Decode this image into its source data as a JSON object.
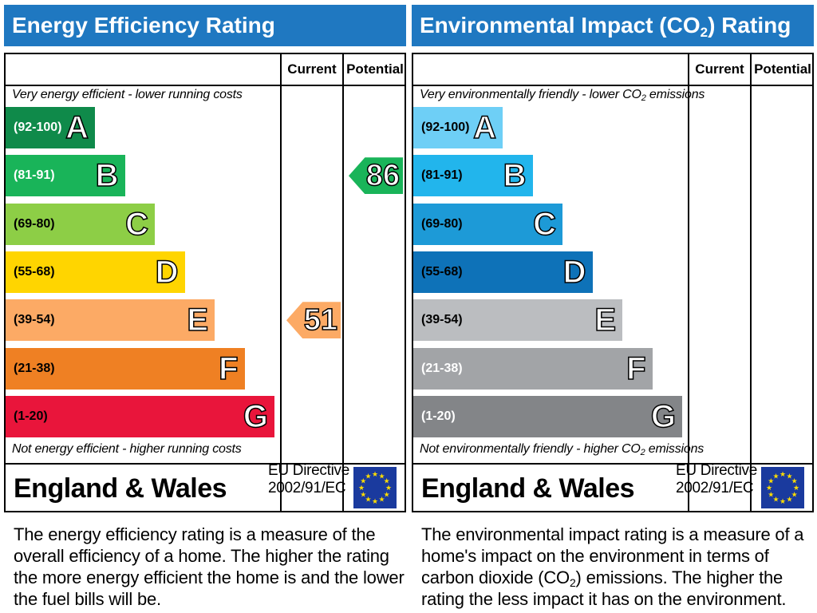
{
  "chart_data": [
    {
      "type": "bar",
      "title": "Energy Efficiency Rating",
      "columns": [
        "Current",
        "Potential"
      ],
      "top_note": "Very energy efficient - lower running costs",
      "bottom_note": "Not energy efficient - higher running costs",
      "bands": [
        {
          "range": "(92-100)",
          "letter": "A",
          "color": "#0f8a4a",
          "range_color": "#ffffff"
        },
        {
          "range": "(81-91)",
          "letter": "B",
          "color": "#19b459",
          "range_color": "#ffffff"
        },
        {
          "range": "(69-80)",
          "letter": "C",
          "color": "#8dce46",
          "range_color": "#000000"
        },
        {
          "range": "(55-68)",
          "letter": "D",
          "color": "#ffd500",
          "range_color": "#000000"
        },
        {
          "range": "(39-54)",
          "letter": "E",
          "color": "#fcaa65",
          "range_color": "#000000"
        },
        {
          "range": "(21-38)",
          "letter": "F",
          "color": "#ef8023",
          "range_color": "#000000"
        },
        {
          "range": "(1-20)",
          "letter": "G",
          "color": "#e9153b",
          "range_color": "#000000"
        }
      ],
      "ratings": [
        {
          "column": "Current",
          "value": 51,
          "band": "E",
          "color": "#fcaa65"
        },
        {
          "column": "Potential",
          "value": 86,
          "band": "B",
          "color": "#19b459"
        }
      ],
      "region": "England & Wales",
      "directive_line1": "EU Directive",
      "directive_line2": "2002/91/EC",
      "description": "The energy efficiency rating is a measure of the overall efficiency of a home. The higher the rating the more energy efficient the home is and the lower the fuel bills will be."
    },
    {
      "type": "bar",
      "title_main": "Environmental Impact (CO",
      "title_sub": "2",
      "title_end": ") Rating",
      "columns": [
        "Current",
        "Potential"
      ],
      "top_note_main": "Very environmentally friendly - lower CO",
      "top_note_sub": "2",
      "top_note_end": " emissions",
      "bottom_note_main": "Not environmentally friendly - higher CO",
      "bottom_note_sub": "2",
      "bottom_note_end": " emissions",
      "bands": [
        {
          "range": "(92-100)",
          "letter": "A",
          "color": "#6ecff6",
          "range_color": "#000000"
        },
        {
          "range": "(81-91)",
          "letter": "B",
          "color": "#22b5ec",
          "range_color": "#000000"
        },
        {
          "range": "(69-80)",
          "letter": "C",
          "color": "#1d9ad7",
          "range_color": "#000000"
        },
        {
          "range": "(55-68)",
          "letter": "D",
          "color": "#0e72b8",
          "range_color": "#000000"
        },
        {
          "range": "(39-54)",
          "letter": "E",
          "color": "#bbbdc0",
          "range_color": "#000000"
        },
        {
          "range": "(21-38)",
          "letter": "F",
          "color": "#a2a4a7",
          "range_color": "#ffffff"
        },
        {
          "range": "(1-20)",
          "letter": "G",
          "color": "#838588",
          "range_color": "#ffffff"
        }
      ],
      "ratings": [],
      "region": "England & Wales",
      "directive_line1": "EU Directive",
      "directive_line2": "2002/91/EC",
      "description_part1": "The environmental impact rating is a measure of a home's impact on the environment in terms of carbon dioxide (CO",
      "description_sub": "2",
      "description_part2": ") emissions. The higher the rating the less impact it has on the environment."
    }
  ],
  "icons": {
    "eu_flag": "eu-flag-icon",
    "star_color": "#ffdd00"
  }
}
